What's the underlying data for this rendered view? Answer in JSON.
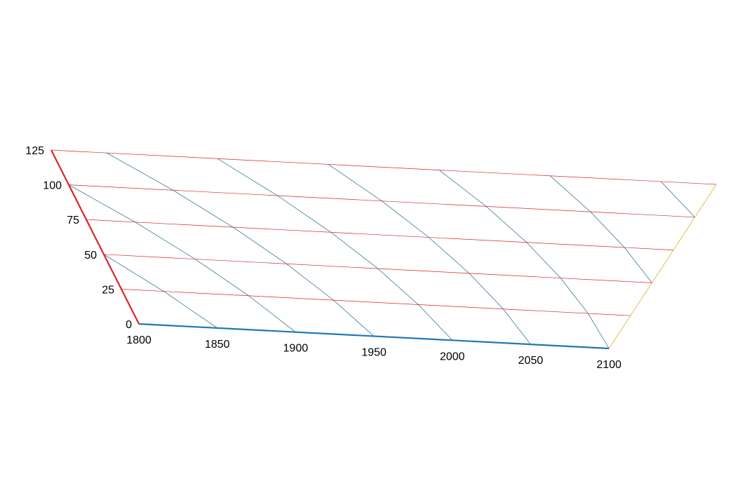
{
  "chart_data": {
    "type": "ternary",
    "a_axis": {
      "ticks": [
        0,
        25,
        50,
        75,
        100,
        125
      ],
      "range": [
        0,
        125
      ],
      "color": "#d62728"
    },
    "b_axis": {
      "ticks": [
        1800,
        1850,
        1900,
        1950,
        2000,
        2050,
        2100
      ],
      "range": [
        1800,
        2100
      ],
      "color": "#1f77b4"
    },
    "c_axis": {
      "color": "#e8b84a"
    },
    "grid": true,
    "series": []
  }
}
